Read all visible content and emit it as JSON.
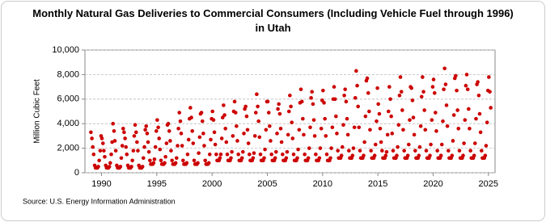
{
  "chart_data": {
    "type": "scatter",
    "title": "Monthly Natural Gas Deliveries to Commercial Consumers (Including Vehicle Fuel through 1996) in Utah",
    "y_label": "Million Cubic Feet",
    "source": "Source: U.S. Energy Information Administration",
    "xlim": [
      1988.5,
      2025.6
    ],
    "xticks": [
      1990,
      1995,
      2000,
      2005,
      2010,
      2015,
      2020,
      2025
    ],
    "ylim": [
      0,
      10000
    ],
    "yticks": [
      0,
      {
        "value": 2000,
        "label": "2,000"
      },
      {
        "value": 4000,
        "label": "4,000"
      },
      {
        "value": 6000,
        "label": "6,000"
      },
      {
        "value": 8000,
        "label": "8,000"
      },
      {
        "value": 10000,
        "label": "10,000"
      }
    ],
    "grid": true,
    "color": "#cc0000",
    "x": [
      1989.04,
      1989.13,
      1989.21,
      1989.29,
      1989.38,
      1989.46,
      1989.54,
      1989.63,
      1989.71,
      1989.79,
      1989.88,
      1989.96,
      1990.04,
      1990.13,
      1990.21,
      1990.29,
      1990.38,
      1990.46,
      1990.54,
      1990.63,
      1990.71,
      1990.79,
      1990.88,
      1990.96,
      1991.04,
      1991.13,
      1991.21,
      1991.29,
      1991.38,
      1991.46,
      1991.54,
      1991.63,
      1991.71,
      1991.79,
      1991.88,
      1991.96,
      1992.04,
      1992.13,
      1992.21,
      1992.29,
      1992.38,
      1992.46,
      1992.54,
      1992.63,
      1992.71,
      1992.79,
      1992.88,
      1992.96,
      1993.04,
      1993.13,
      1993.21,
      1993.29,
      1993.38,
      1993.46,
      1993.54,
      1993.63,
      1993.71,
      1993.79,
      1993.88,
      1993.96,
      1994.04,
      1994.13,
      1994.21,
      1994.29,
      1994.38,
      1994.46,
      1994.54,
      1994.63,
      1994.71,
      1994.79,
      1994.88,
      1994.96,
      1995.04,
      1995.13,
      1995.21,
      1995.29,
      1995.38,
      1995.46,
      1995.54,
      1995.63,
      1995.71,
      1995.79,
      1995.88,
      1995.96,
      1996.04,
      1996.13,
      1996.21,
      1996.29,
      1996.38,
      1996.46,
      1996.54,
      1996.63,
      1996.71,
      1996.79,
      1996.88,
      1996.96,
      1997.04,
      1997.13,
      1997.21,
      1997.29,
      1997.38,
      1997.46,
      1997.54,
      1997.63,
      1997.71,
      1997.79,
      1997.88,
      1997.96,
      1998.04,
      1998.13,
      1998.21,
      1998.29,
      1998.38,
      1998.46,
      1998.54,
      1998.63,
      1998.71,
      1998.79,
      1998.88,
      1998.96,
      1999.04,
      1999.13,
      1999.21,
      1999.29,
      1999.38,
      1999.46,
      1999.54,
      1999.63,
      1999.71,
      1999.79,
      1999.88,
      1999.96,
      2000.04,
      2000.13,
      2000.21,
      2000.29,
      2000.38,
      2000.46,
      2000.54,
      2000.63,
      2000.71,
      2000.79,
      2000.88,
      2000.96,
      2001.04,
      2001.13,
      2001.21,
      2001.29,
      2001.38,
      2001.46,
      2001.54,
      2001.63,
      2001.71,
      2001.79,
      2001.88,
      2001.96,
      2002.04,
      2002.13,
      2002.21,
      2002.29,
      2002.38,
      2002.46,
      2002.54,
      2002.63,
      2002.71,
      2002.79,
      2002.88,
      2002.96,
      2003.04,
      2003.13,
      2003.21,
      2003.29,
      2003.38,
      2003.46,
      2003.54,
      2003.63,
      2003.71,
      2003.79,
      2003.88,
      2003.96,
      2004.04,
      2004.13,
      2004.21,
      2004.29,
      2004.38,
      2004.46,
      2004.54,
      2004.63,
      2004.71,
      2004.79,
      2004.88,
      2004.96,
      2005.04,
      2005.13,
      2005.21,
      2005.29,
      2005.38,
      2005.46,
      2005.54,
      2005.63,
      2005.71,
      2005.79,
      2005.88,
      2005.96,
      2006.04,
      2006.13,
      2006.21,
      2006.29,
      2006.38,
      2006.46,
      2006.54,
      2006.63,
      2006.71,
      2006.79,
      2006.88,
      2006.96,
      2007.04,
      2007.13,
      2007.21,
      2007.29,
      2007.38,
      2007.46,
      2007.54,
      2007.63,
      2007.71,
      2007.79,
      2007.88,
      2007.96,
      2008.04,
      2008.13,
      2008.21,
      2008.29,
      2008.38,
      2008.46,
      2008.54,
      2008.63,
      2008.71,
      2008.79,
      2008.88,
      2008.96,
      2009.04,
      2009.13,
      2009.21,
      2009.29,
      2009.38,
      2009.46,
      2009.54,
      2009.63,
      2009.71,
      2009.79,
      2009.88,
      2009.96,
      2010.04,
      2010.13,
      2010.21,
      2010.29,
      2010.38,
      2010.46,
      2010.54,
      2010.63,
      2010.71,
      2010.79,
      2010.88,
      2010.96,
      2011.04,
      2011.13,
      2011.21,
      2011.29,
      2011.38,
      2011.46,
      2011.54,
      2011.63,
      2011.71,
      2011.79,
      2011.88,
      2011.96,
      2012.04,
      2012.13,
      2012.21,
      2012.29,
      2012.38,
      2012.46,
      2012.54,
      2012.63,
      2012.71,
      2012.79,
      2012.88,
      2012.96,
      2013.04,
      2013.13,
      2013.21,
      2013.29,
      2013.38,
      2013.46,
      2013.54,
      2013.63,
      2013.71,
      2013.79,
      2013.88,
      2013.96,
      2014.04,
      2014.13,
      2014.21,
      2014.29,
      2014.38,
      2014.46,
      2014.54,
      2014.63,
      2014.71,
      2014.79,
      2014.88,
      2014.96,
      2015.04,
      2015.13,
      2015.21,
      2015.29,
      2015.38,
      2015.46,
      2015.54,
      2015.63,
      2015.71,
      2015.79,
      2015.88,
      2015.96,
      2016.04,
      2016.13,
      2016.21,
      2016.29,
      2016.38,
      2016.46,
      2016.54,
      2016.63,
      2016.71,
      2016.79,
      2016.88,
      2016.96,
      2017.04,
      2017.13,
      2017.21,
      2017.29,
      2017.38,
      2017.46,
      2017.54,
      2017.63,
      2017.71,
      2017.79,
      2017.88,
      2017.96,
      2018.04,
      2018.13,
      2018.21,
      2018.29,
      2018.38,
      2018.46,
      2018.54,
      2018.63,
      2018.71,
      2018.79,
      2018.88,
      2018.96,
      2019.04,
      2019.13,
      2019.21,
      2019.29,
      2019.38,
      2019.46,
      2019.54,
      2019.63,
      2019.71,
      2019.79,
      2019.88,
      2019.96,
      2020.04,
      2020.13,
      2020.21,
      2020.29,
      2020.38,
      2020.46,
      2020.54,
      2020.63,
      2020.71,
      2020.79,
      2020.88,
      2020.96,
      2021.04,
      2021.13,
      2021.21,
      2021.29,
      2021.38,
      2021.46,
      2021.54,
      2021.63,
      2021.71,
      2021.79,
      2021.88,
      2021.96,
      2022.04,
      2022.13,
      2022.21,
      2022.29,
      2022.38,
      2022.46,
      2022.54,
      2022.63,
      2022.71,
      2022.79,
      2022.88,
      2022.96,
      2023.04,
      2023.13,
      2023.21,
      2023.29,
      2023.38,
      2023.46,
      2023.54,
      2023.63,
      2023.71,
      2023.79,
      2023.88,
      2023.96,
      2024.04,
      2024.13,
      2024.21,
      2024.29,
      2024.38,
      2024.46,
      2024.54,
      2024.63,
      2024.71,
      2024.79,
      2024.88,
      2024.96,
      2025.04,
      2025.13,
      2025.21
    ],
    "values": [
      3300,
      2800,
      2100,
      1500,
      600,
      400,
      400,
      400,
      500,
      1000,
      1800,
      3000,
      2800,
      2400,
      1800,
      1300,
      600,
      400,
      400,
      400,
      500,
      800,
      1500,
      2500,
      4000,
      3400,
      2600,
      1800,
      600,
      400,
      400,
      400,
      500,
      1200,
      2200,
      3600,
      3300,
      2800,
      2100,
      1500,
      600,
      400,
      400,
      400,
      500,
      1000,
      1800,
      3000,
      3900,
      3300,
      2500,
      1800,
      600,
      400,
      400,
      400,
      500,
      1200,
      2100,
      3500,
      3800,
      3200,
      2500,
      1700,
      1000,
      700,
      700,
      700,
      800,
      1100,
      2100,
      3400,
      4300,
      3700,
      2800,
      1900,
      1000,
      700,
      700,
      700,
      800,
      1300,
      2400,
      3900,
      4000,
      3400,
      2600,
      1800,
      1000,
      700,
      700,
      700,
      800,
      1200,
      2200,
      3600,
      4900,
      4200,
      3200,
      2200,
      1000,
      700,
      700,
      700,
      800,
      1500,
      2700,
      4400,
      5300,
      4500,
      3400,
      2400,
      1000,
      700,
      700,
      700,
      800,
      1600,
      2900,
      4800,
      4900,
      4200,
      3200,
      2200,
      1000,
      700,
      700,
      700,
      800,
      1500,
      2700,
      4400,
      5000,
      4300,
      3300,
      2300,
      1500,
      1000,
      1000,
      1000,
      1200,
      1500,
      2800,
      4500,
      5500,
      4700,
      3600,
      2500,
      1500,
      1000,
      1000,
      1000,
      1200,
      1700,
      3000,
      5000,
      5800,
      4900,
      3800,
      2600,
      1500,
      1000,
      1000,
      1000,
      1200,
      1700,
      3200,
      5200,
      5400,
      4600,
      3500,
      2400,
      1500,
      1000,
      1000,
      1000,
      1200,
      1600,
      3000,
      4900,
      6400,
      5400,
      4200,
      2900,
      1500,
      1000,
      1000,
      1000,
      1200,
      1900,
      3500,
      5800,
      5800,
      4900,
      3800,
      2600,
      1500,
      1000,
      1000,
      1000,
      1200,
      1700,
      3200,
      5200,
      5600,
      4800,
      3600,
      2500,
      1500,
      1000,
      1000,
      1000,
      1200,
      1700,
      3100,
      5000,
      6300,
      5400,
      4100,
      2800,
      1500,
      1000,
      1000,
      1000,
      1200,
      1900,
      3500,
      5700,
      6800,
      5800,
      4400,
      3100,
      1500,
      1000,
      1000,
      1000,
      1200,
      2000,
      3700,
      6100,
      6600,
      5600,
      4300,
      3000,
      1500,
      1000,
      1000,
      1000,
      1200,
      2000,
      3600,
      5900,
      6700,
      5700,
      4400,
      3000,
      1500,
      1000,
      1000,
      1000,
      1200,
      2000,
      3700,
      6000,
      7000,
      6000,
      4600,
      3200,
      1800,
      1200,
      1200,
      1200,
      1400,
      2100,
      3900,
      6300,
      6800,
      5800,
      4400,
      3100,
      1800,
      1200,
      1200,
      1200,
      1400,
      2000,
      3700,
      6100,
      8300,
      7100,
      5400,
      3700,
      1800,
      1200,
      1200,
      1200,
      1400,
      2500,
      4600,
      7500,
      7700,
      6500,
      5000,
      3500,
      1800,
      1200,
      1200,
      1200,
      1400,
      2300,
      4200,
      6900,
      5600,
      4800,
      3600,
      2500,
      1800,
      1200,
      1200,
      1200,
      1400,
      1700,
      3100,
      5000,
      7000,
      6000,
      4600,
      3200,
      1800,
      1200,
      1200,
      1200,
      1400,
      2100,
      3900,
      6300,
      7800,
      6600,
      5100,
      3500,
      1800,
      1200,
      1200,
      1200,
      1400,
      2300,
      4300,
      7000,
      6900,
      5900,
      4500,
      3100,
      1800,
      1200,
      1200,
      1200,
      1400,
      2100,
      3800,
      6200,
      7800,
      6600,
      5100,
      3500,
      1800,
      1200,
      1200,
      1200,
      1400,
      2300,
      4300,
      7000,
      7600,
      6500,
      4900,
      3400,
      1800,
      1200,
      1200,
      1200,
      1400,
      2300,
      4200,
      6800,
      8500,
      7200,
      5500,
      3800,
      1800,
      1200,
      1200,
      1200,
      1400,
      2600,
      4700,
      7700,
      7900,
      6700,
      5100,
      3600,
      1800,
      1200,
      1200,
      1200,
      1400,
      2400,
      4300,
      7100,
      8000,
      6800,
      5200,
      3600,
      1800,
      1200,
      1200,
      1200,
      1400,
      2400,
      4400,
      7200,
      7400,
      6300,
      4800,
      3300,
      1800,
      1200,
      1200,
      1200,
      1400,
      2200,
      4100,
      6700,
      7800,
      6600,
      5300
    ]
  }
}
